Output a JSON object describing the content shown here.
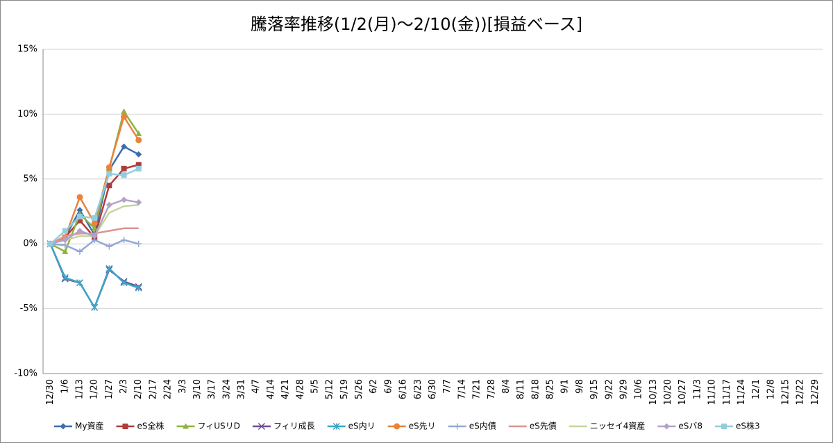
{
  "chart_data": {
    "type": "line",
    "title": "騰落率推移(1/2(月)～2/10(金))[損益ベース]",
    "categories": [
      "12/30",
      "1/6",
      "1/13",
      "1/20",
      "1/27",
      "2/3",
      "2/10",
      "2/17",
      "2/24",
      "3/3",
      "3/10",
      "3/17",
      "3/24",
      "3/31",
      "4/7",
      "4/14",
      "4/21",
      "4/28",
      "5/5",
      "5/12",
      "5/19",
      "5/26",
      "6/2",
      "6/9",
      "6/16",
      "6/23",
      "6/30",
      "7/7",
      "7/14",
      "7/21",
      "7/28",
      "8/4",
      "8/11",
      "8/18",
      "8/25",
      "9/1",
      "9/8",
      "9/15",
      "9/22",
      "9/29",
      "10/6",
      "10/13",
      "10/20",
      "10/27",
      "11/3",
      "11/10",
      "11/17",
      "11/24",
      "12/1",
      "12/8",
      "12/15",
      "12/22",
      "12/29"
    ],
    "ylim": [
      -10,
      15
    ],
    "yticks": [
      {
        "value": -10,
        "label": "-10%"
      },
      {
        "value": -5,
        "label": "-5%"
      },
      {
        "value": 0,
        "label": "0%"
      },
      {
        "value": 5,
        "label": "5%"
      },
      {
        "value": 10,
        "label": "10%"
      },
      {
        "value": 15,
        "label": "15%"
      }
    ],
    "grid": true,
    "legend": "bottom",
    "series": [
      {
        "name": "My資産",
        "color": "#3c6ead",
        "marker": "diamond",
        "values": [
          0,
          0.5,
          2.6,
          0.7,
          5.7,
          7.5,
          6.9,
          null,
          null,
          null,
          null,
          null,
          null,
          null,
          null,
          null,
          null,
          null,
          null,
          null,
          null,
          null,
          null,
          null,
          null,
          null,
          null,
          null,
          null,
          null,
          null,
          null,
          null,
          null,
          null,
          null,
          null,
          null,
          null,
          null,
          null,
          null,
          null,
          null,
          null,
          null,
          null,
          null,
          null,
          null,
          null,
          null,
          null
        ]
      },
      {
        "name": "eS全株",
        "color": "#b03c3a",
        "marker": "square",
        "values": [
          0,
          0.5,
          1.8,
          0.5,
          4.5,
          5.8,
          6.1,
          null,
          null,
          null,
          null,
          null,
          null,
          null,
          null,
          null,
          null,
          null,
          null,
          null,
          null,
          null,
          null,
          null,
          null,
          null,
          null,
          null,
          null,
          null,
          null,
          null,
          null,
          null,
          null,
          null,
          null,
          null,
          null,
          null,
          null,
          null,
          null,
          null,
          null,
          null,
          null,
          null,
          null,
          null,
          null,
          null,
          null
        ]
      },
      {
        "name": "フィUSリD",
        "color": "#8db33e",
        "marker": "triangle",
        "values": [
          0,
          -0.6,
          2.3,
          1.2,
          5.8,
          10.2,
          8.5,
          null,
          null,
          null,
          null,
          null,
          null,
          null,
          null,
          null,
          null,
          null,
          null,
          null,
          null,
          null,
          null,
          null,
          null,
          null,
          null,
          null,
          null,
          null,
          null,
          null,
          null,
          null,
          null,
          null,
          null,
          null,
          null,
          null,
          null,
          null,
          null,
          null,
          null,
          null,
          null,
          null,
          null,
          null,
          null,
          null,
          null
        ]
      },
      {
        "name": "フィリ成長",
        "color": "#6b4e94",
        "marker": "x",
        "values": [
          0,
          -2.7,
          -3.0,
          -4.9,
          -2.0,
          -2.9,
          -3.3,
          null,
          null,
          null,
          null,
          null,
          null,
          null,
          null,
          null,
          null,
          null,
          null,
          null,
          null,
          null,
          null,
          null,
          null,
          null,
          null,
          null,
          null,
          null,
          null,
          null,
          null,
          null,
          null,
          null,
          null,
          null,
          null,
          null,
          null,
          null,
          null,
          null,
          null,
          null,
          null,
          null,
          null,
          null,
          null,
          null,
          null
        ]
      },
      {
        "name": "eS内リ",
        "color": "#3ea5c5",
        "marker": "star",
        "values": [
          0,
          -2.6,
          -3.0,
          -4.9,
          -1.9,
          -3.0,
          -3.4,
          null,
          null,
          null,
          null,
          null,
          null,
          null,
          null,
          null,
          null,
          null,
          null,
          null,
          null,
          null,
          null,
          null,
          null,
          null,
          null,
          null,
          null,
          null,
          null,
          null,
          null,
          null,
          null,
          null,
          null,
          null,
          null,
          null,
          null,
          null,
          null,
          null,
          null,
          null,
          null,
          null,
          null,
          null,
          null,
          null,
          null
        ]
      },
      {
        "name": "eS先リ",
        "color": "#e8843a",
        "marker": "circle",
        "values": [
          0,
          0.5,
          3.6,
          1.6,
          5.9,
          9.8,
          8.0,
          null,
          null,
          null,
          null,
          null,
          null,
          null,
          null,
          null,
          null,
          null,
          null,
          null,
          null,
          null,
          null,
          null,
          null,
          null,
          null,
          null,
          null,
          null,
          null,
          null,
          null,
          null,
          null,
          null,
          null,
          null,
          null,
          null,
          null,
          null,
          null,
          null,
          null,
          null,
          null,
          null,
          null,
          null,
          null,
          null,
          null
        ]
      },
      {
        "name": "eS内債",
        "color": "#92a9d6",
        "marker": "plus",
        "values": [
          0,
          -0.1,
          -0.6,
          0.3,
          -0.2,
          0.3,
          0.0,
          null,
          null,
          null,
          null,
          null,
          null,
          null,
          null,
          null,
          null,
          null,
          null,
          null,
          null,
          null,
          null,
          null,
          null,
          null,
          null,
          null,
          null,
          null,
          null,
          null,
          null,
          null,
          null,
          null,
          null,
          null,
          null,
          null,
          null,
          null,
          null,
          null,
          null,
          null,
          null,
          null,
          null,
          null,
          null,
          null,
          null
        ]
      },
      {
        "name": "eS先債",
        "color": "#d99593",
        "marker": "none",
        "values": [
          0,
          0.6,
          0.8,
          0.8,
          1.0,
          1.2,
          1.2,
          null,
          null,
          null,
          null,
          null,
          null,
          null,
          null,
          null,
          null,
          null,
          null,
          null,
          null,
          null,
          null,
          null,
          null,
          null,
          null,
          null,
          null,
          null,
          null,
          null,
          null,
          null,
          null,
          null,
          null,
          null,
          null,
          null,
          null,
          null,
          null,
          null,
          null,
          null,
          null,
          null,
          null,
          null,
          null,
          null,
          null
        ]
      },
      {
        "name": "ニッセイ4資産",
        "color": "#c3d69b",
        "marker": "none",
        "values": [
          0,
          0.3,
          0.6,
          0.6,
          2.4,
          2.9,
          3.0,
          null,
          null,
          null,
          null,
          null,
          null,
          null,
          null,
          null,
          null,
          null,
          null,
          null,
          null,
          null,
          null,
          null,
          null,
          null,
          null,
          null,
          null,
          null,
          null,
          null,
          null,
          null,
          null,
          null,
          null,
          null,
          null,
          null,
          null,
          null,
          null,
          null,
          null,
          null,
          null,
          null,
          null,
          null,
          null,
          null,
          null
        ]
      },
      {
        "name": "eSバ8",
        "color": "#b3a2c7",
        "marker": "diamond",
        "values": [
          0,
          0.3,
          1.0,
          0.6,
          3.0,
          3.4,
          3.2,
          null,
          null,
          null,
          null,
          null,
          null,
          null,
          null,
          null,
          null,
          null,
          null,
          null,
          null,
          null,
          null,
          null,
          null,
          null,
          null,
          null,
          null,
          null,
          null,
          null,
          null,
          null,
          null,
          null,
          null,
          null,
          null,
          null,
          null,
          null,
          null,
          null,
          null,
          null,
          null,
          null,
          null,
          null,
          null,
          null,
          null
        ]
      },
      {
        "name": "eS株3",
        "color": "#93cddd",
        "marker": "square",
        "values": [
          0,
          1.0,
          2.1,
          2.0,
          5.4,
          5.3,
          5.8,
          null,
          null,
          null,
          null,
          null,
          null,
          null,
          null,
          null,
          null,
          null,
          null,
          null,
          null,
          null,
          null,
          null,
          null,
          null,
          null,
          null,
          null,
          null,
          null,
          null,
          null,
          null,
          null,
          null,
          null,
          null,
          null,
          null,
          null,
          null,
          null,
          null,
          null,
          null,
          null,
          null,
          null,
          null,
          null,
          null,
          null
        ]
      }
    ]
  }
}
